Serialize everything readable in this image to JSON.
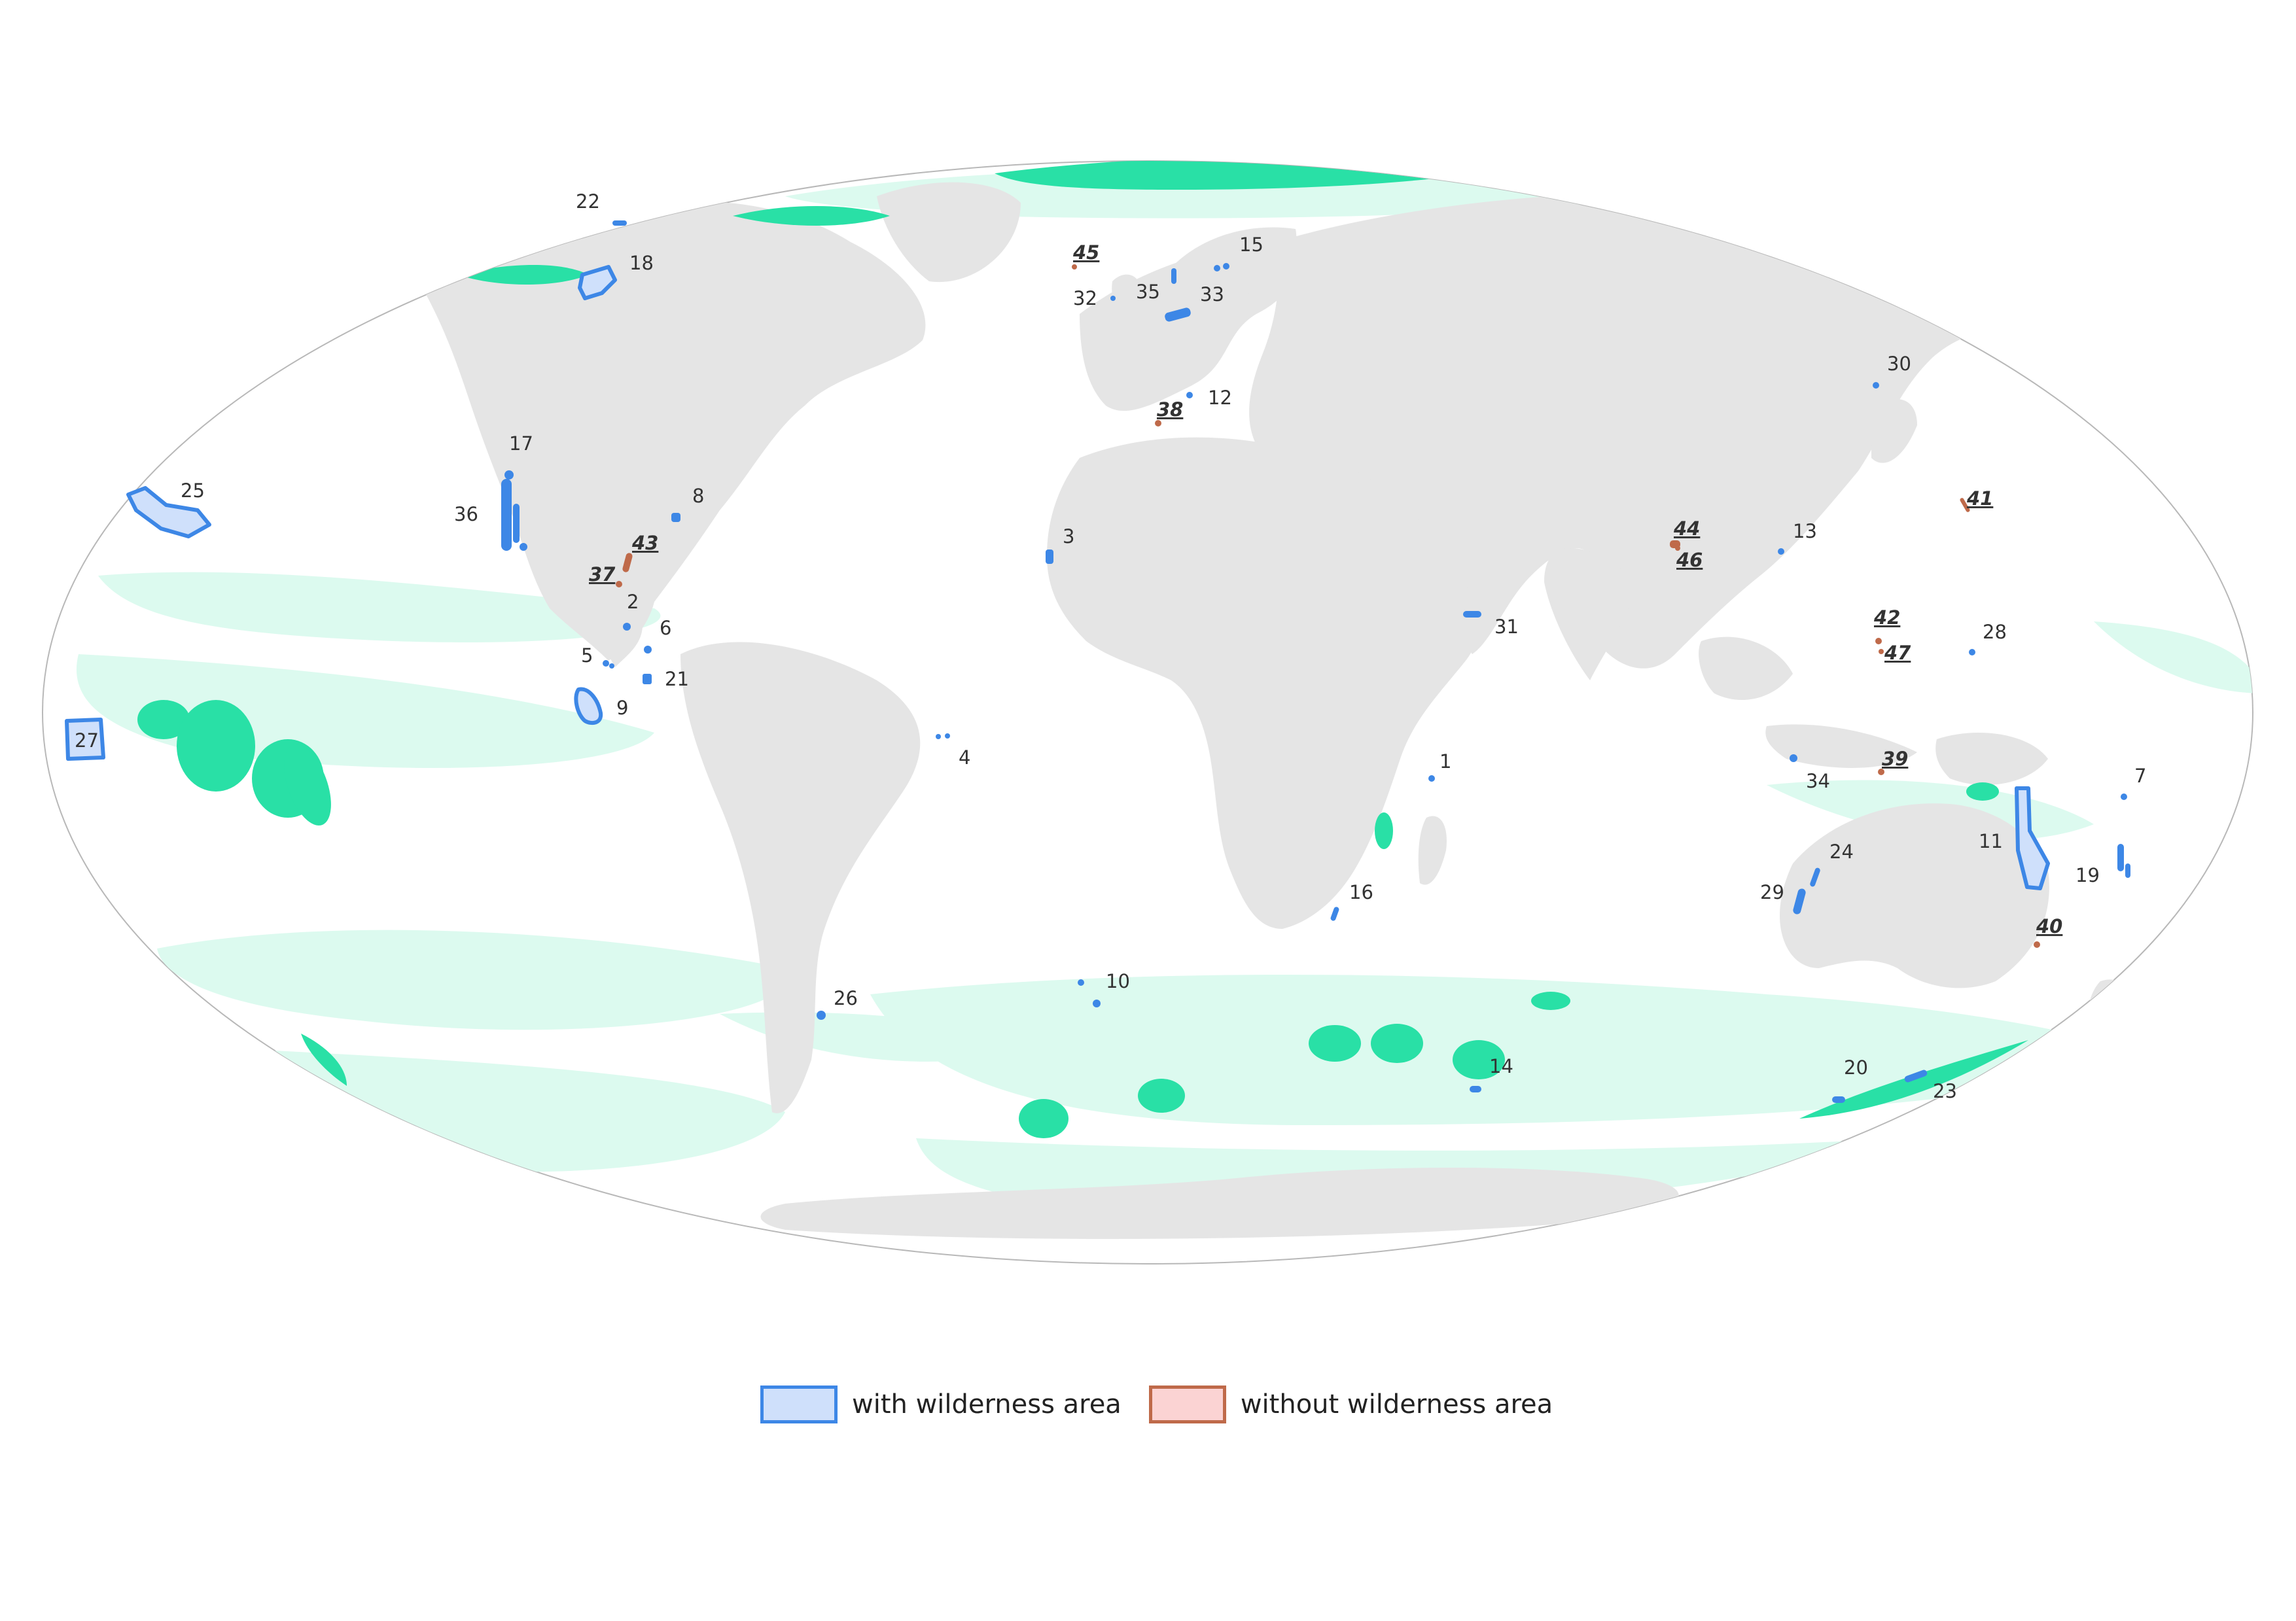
{
  "colors": {
    "ocean": "#ffffff",
    "land": "#e5e5e5",
    "wilderness": "#29e0a6",
    "wilderness_light": "#dcfaef",
    "with_wilderness_stroke": "#3d87e6",
    "with_wilderness_fill": "#cfe0fb",
    "without_wilderness_stroke": "#bf6a4a",
    "without_wilderness_fill": "#fbd3d3"
  },
  "legend": {
    "with_label": "with wilderness area",
    "without_label": "without wilderness area"
  },
  "sites": [
    {
      "id": "1",
      "group": "with"
    },
    {
      "id": "2",
      "group": "with"
    },
    {
      "id": "3",
      "group": "with"
    },
    {
      "id": "4",
      "group": "with"
    },
    {
      "id": "5",
      "group": "with"
    },
    {
      "id": "6",
      "group": "with"
    },
    {
      "id": "7",
      "group": "with"
    },
    {
      "id": "8",
      "group": "with"
    },
    {
      "id": "9",
      "group": "with"
    },
    {
      "id": "10",
      "group": "with"
    },
    {
      "id": "11",
      "group": "with"
    },
    {
      "id": "12",
      "group": "with"
    },
    {
      "id": "13",
      "group": "with"
    },
    {
      "id": "14",
      "group": "with"
    },
    {
      "id": "15",
      "group": "with"
    },
    {
      "id": "16",
      "group": "with"
    },
    {
      "id": "17",
      "group": "with"
    },
    {
      "id": "18",
      "group": "with"
    },
    {
      "id": "19",
      "group": "with"
    },
    {
      "id": "20",
      "group": "with"
    },
    {
      "id": "21",
      "group": "with"
    },
    {
      "id": "22",
      "group": "with"
    },
    {
      "id": "23",
      "group": "with"
    },
    {
      "id": "24",
      "group": "with"
    },
    {
      "id": "25",
      "group": "with"
    },
    {
      "id": "26",
      "group": "with"
    },
    {
      "id": "27",
      "group": "with"
    },
    {
      "id": "28",
      "group": "with"
    },
    {
      "id": "29",
      "group": "with"
    },
    {
      "id": "30",
      "group": "with"
    },
    {
      "id": "31",
      "group": "with"
    },
    {
      "id": "32",
      "group": "with"
    },
    {
      "id": "33",
      "group": "with"
    },
    {
      "id": "34",
      "group": "with"
    },
    {
      "id": "35",
      "group": "with"
    },
    {
      "id": "36",
      "group": "with"
    },
    {
      "id": "37",
      "group": "without"
    },
    {
      "id": "38",
      "group": "without"
    },
    {
      "id": "39",
      "group": "without"
    },
    {
      "id": "40",
      "group": "without"
    },
    {
      "id": "41",
      "group": "without"
    },
    {
      "id": "42",
      "group": "without"
    },
    {
      "id": "43",
      "group": "without"
    },
    {
      "id": "44",
      "group": "without"
    },
    {
      "id": "45",
      "group": "without"
    },
    {
      "id": "46",
      "group": "without"
    },
    {
      "id": "47",
      "group": "without"
    }
  ]
}
